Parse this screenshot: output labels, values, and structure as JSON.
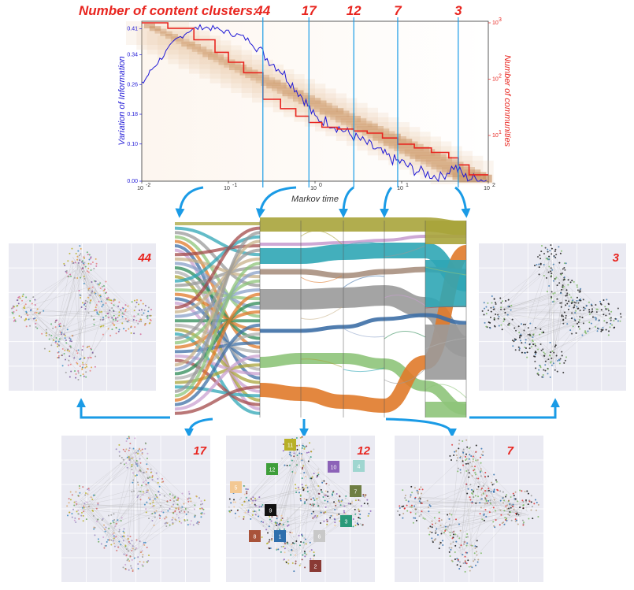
{
  "title": {
    "label": "Number of content clusters:",
    "cluster_counts": [
      "44",
      "17",
      "12",
      "7",
      "3"
    ]
  },
  "colors": {
    "accent_red": "#e8251f",
    "vi_blue": "#1f18d6",
    "arrow_blue": "#1a9be6",
    "heat_brown": "#b5733a"
  },
  "chart_data": {
    "type": "line",
    "xlabel": "Markov time",
    "ylabel_left": "Variation of Information",
    "ylabel_right": "Number of communities",
    "x_scale": "log",
    "xlim": [
      0.01,
      100
    ],
    "x_ticks": [
      "10",
      "10",
      "10",
      "10",
      "10"
    ],
    "x_tick_exps": [
      "-2",
      "-1",
      "0",
      "1",
      "2"
    ],
    "ylim_left": [
      0,
      0.43
    ],
    "y_ticks_left": [
      "0.00",
      "0.10",
      "0.18",
      "0.26",
      "0.34",
      "0.41"
    ],
    "y_right_scale": "log",
    "y_ticks_right": [
      "10",
      "10",
      "10",
      "10"
    ],
    "y_ticks_right_exps": [
      "3",
      "2",
      "1",
      ""
    ],
    "selected_times": [
      0.25,
      0.85,
      2.8,
      9,
      45
    ],
    "series": [
      {
        "name": "Variation of Information",
        "x": [
          0.01,
          0.013,
          0.018,
          0.025,
          0.035,
          0.05,
          0.07,
          0.1,
          0.14,
          0.2,
          0.28,
          0.4,
          0.55,
          0.75,
          1.0,
          1.4,
          2.0,
          2.8,
          4.0,
          5.5,
          7.5,
          10,
          14,
          20,
          28,
          40,
          55,
          75,
          100
        ],
        "values": [
          0.26,
          0.3,
          0.34,
          0.38,
          0.405,
          0.415,
          0.41,
          0.4,
          0.39,
          0.37,
          0.33,
          0.3,
          0.26,
          0.22,
          0.17,
          0.16,
          0.14,
          0.12,
          0.1,
          0.08,
          0.06,
          0.05,
          0.03,
          0.02,
          0.01,
          0.04,
          0.01,
          0.005,
          0.002
        ]
      },
      {
        "name": "Number of communities",
        "x": [
          0.01,
          0.02,
          0.04,
          0.07,
          0.1,
          0.15,
          0.25,
          0.4,
          0.6,
          0.85,
          1.2,
          1.8,
          2.8,
          4.0,
          6.0,
          9.0,
          14,
          22,
          35,
          45,
          60,
          80,
          100
        ],
        "values": [
          1000,
          800,
          500,
          300,
          200,
          130,
          44,
          30,
          22,
          17,
          14,
          13,
          12,
          11,
          9,
          7,
          6,
          5,
          4,
          3,
          2,
          2,
          2
        ]
      }
    ]
  },
  "sankey": {
    "stages": [
      "0",
      "1",
      "2",
      "3",
      "4",
      "5"
    ]
  },
  "panels": [
    {
      "label": "44"
    },
    {
      "label": "3"
    },
    {
      "label": "17"
    },
    {
      "label": "12"
    },
    {
      "label": "7"
    }
  ],
  "cluster_tags": [
    {
      "label": "11",
      "color": "#b8b026"
    },
    {
      "label": "12",
      "color": "#3e9e3a"
    },
    {
      "label": "10",
      "color": "#8c62b8"
    },
    {
      "label": "4",
      "color": "#9fd6d0"
    },
    {
      "label": "5",
      "color": "#f3c893"
    },
    {
      "label": "7",
      "color": "#6f7e43"
    },
    {
      "label": "9",
      "color": "#111111"
    },
    {
      "label": "3",
      "color": "#2a9a7a"
    },
    {
      "label": "8",
      "color": "#a9533a"
    },
    {
      "label": "1",
      "color": "#2f6fad"
    },
    {
      "label": "6",
      "color": "#c8c8c8"
    },
    {
      "label": "2",
      "color": "#8a3a35"
    }
  ]
}
